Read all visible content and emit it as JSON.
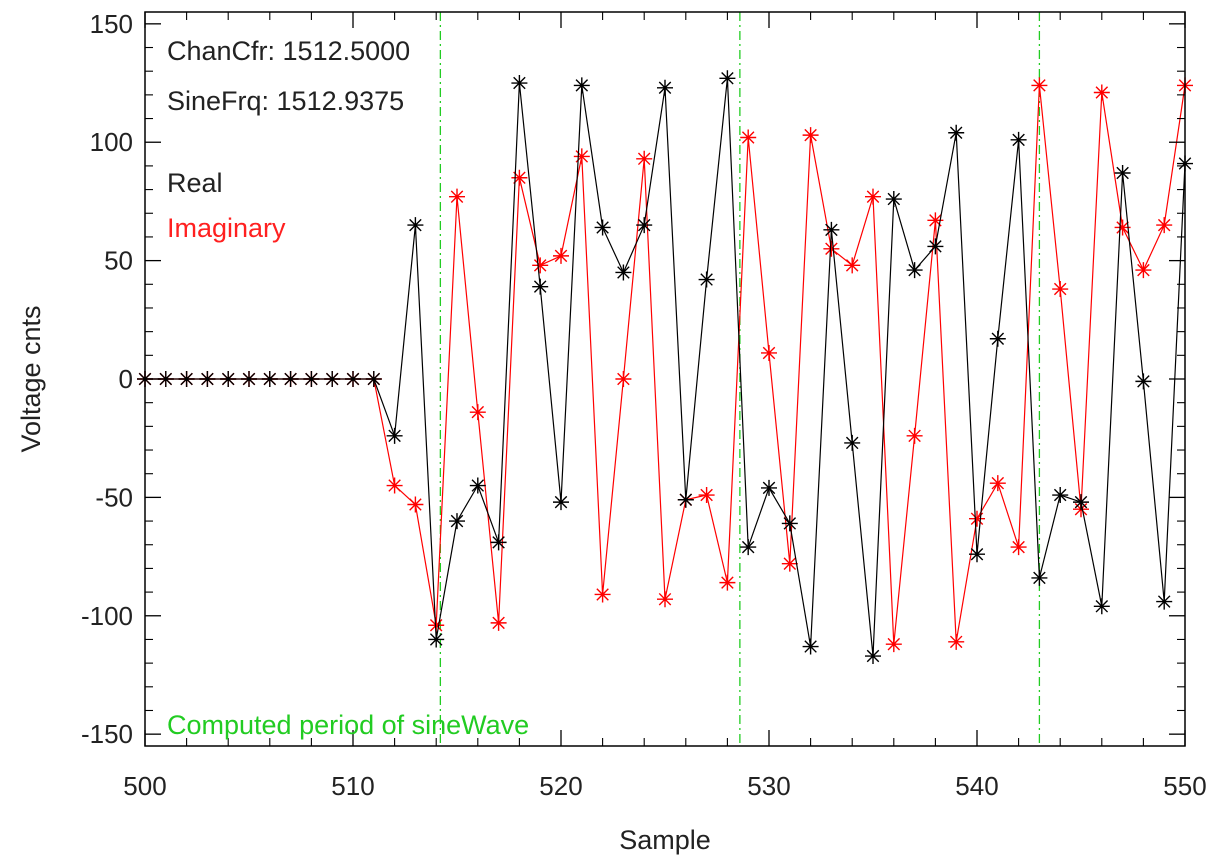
{
  "chart_data": {
    "type": "line",
    "title": "",
    "xlabel": "Sample",
    "ylabel": "Voltage cnts",
    "xlim": [
      500,
      550
    ],
    "ylim": [
      -155,
      155
    ],
    "xticks": [
      500,
      510,
      520,
      530,
      540,
      550
    ],
    "yticks": [
      -150,
      -100,
      -50,
      0,
      50,
      100,
      150
    ],
    "grid": false,
    "marker": "asterisk",
    "x": [
      500,
      501,
      502,
      503,
      504,
      505,
      506,
      507,
      508,
      509,
      510,
      511,
      512,
      513,
      514,
      515,
      516,
      517,
      518,
      519,
      520,
      521,
      522,
      523,
      524,
      525,
      526,
      527,
      528,
      529,
      530,
      531,
      532,
      533,
      534,
      535,
      536,
      537,
      538,
      539,
      540,
      541,
      542,
      543,
      544,
      545,
      546,
      547,
      548,
      549,
      550
    ],
    "series": [
      {
        "name": "Real",
        "color": "#000000",
        "values": [
          0,
          0,
          0,
          0,
          0,
          0,
          0,
          0,
          0,
          0,
          0,
          0,
          -24,
          65,
          -110,
          -60,
          -45,
          -69,
          125,
          39,
          -52,
          124,
          64,
          45,
          65,
          123,
          -51,
          42,
          127,
          -71,
          -46,
          -61,
          -113,
          63,
          -27,
          -117,
          76,
          46,
          56,
          104,
          -74,
          17,
          101,
          -84,
          -49,
          -52,
          -96,
          87,
          -1,
          -94,
          91
        ]
      },
      {
        "name": "Imaginary",
        "color": "#ff0000",
        "values": [
          0,
          0,
          0,
          0,
          0,
          0,
          0,
          0,
          0,
          0,
          0,
          0,
          -45,
          -53,
          -104,
          77,
          -14,
          -103,
          85,
          48,
          52,
          94,
          -91,
          0,
          93,
          -93,
          -51,
          -49,
          -86,
          102,
          11,
          -78,
          103,
          55,
          48,
          77,
          -112,
          -24,
          67,
          -111,
          -59,
          -44,
          -71,
          124,
          38,
          -55,
          121,
          64,
          46,
          65,
          124
        ]
      }
    ],
    "vlines": {
      "label": "Computed period of sineWave",
      "color": "#22cc22",
      "style": "dash-dot",
      "x": [
        514.2,
        528.6,
        543.0
      ]
    },
    "annotations": {
      "chan_cfr": "ChanCfr: 1512.5000",
      "sine_frq": "SineFrq: 1512.9375"
    },
    "legend": {
      "placement": "top-left",
      "entries": [
        {
          "label": "Real",
          "color": "#222222"
        },
        {
          "label": "Imaginary",
          "color": "#ff2020"
        }
      ]
    }
  }
}
